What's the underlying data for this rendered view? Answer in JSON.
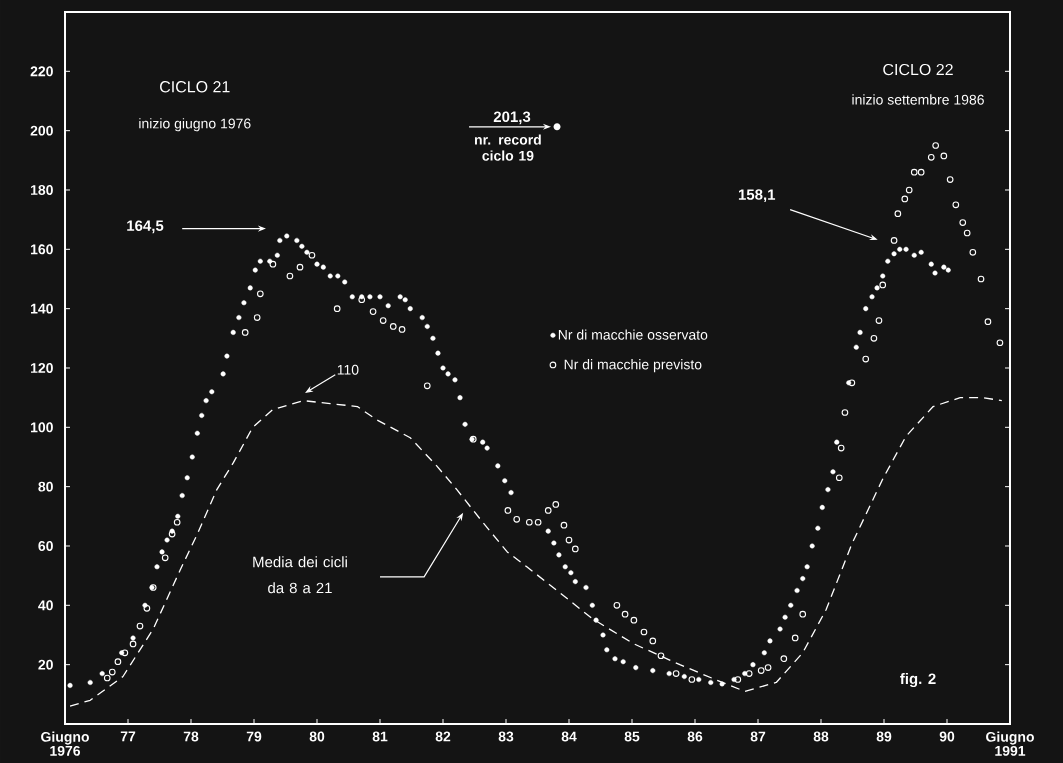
{
  "chart_data": {
    "type": "scatter",
    "xlim": [
      1976,
      1991
    ],
    "ylim": [
      0,
      240
    ],
    "xticks": [
      {
        "value": 1976,
        "label": "Giugno 1976"
      },
      {
        "value": 1977,
        "label": "77"
      },
      {
        "value": 1978,
        "label": "78"
      },
      {
        "value": 1979,
        "label": "79"
      },
      {
        "value": 1980,
        "label": "80"
      },
      {
        "value": 1981,
        "label": "81"
      },
      {
        "value": 1982,
        "label": "82"
      },
      {
        "value": 1983,
        "label": "83"
      },
      {
        "value": 1984,
        "label": "84"
      },
      {
        "value": 1985,
        "label": "85"
      },
      {
        "value": 1986,
        "label": "86"
      },
      {
        "value": 1987,
        "label": "87"
      },
      {
        "value": 1988,
        "label": "88"
      },
      {
        "value": 1989,
        "label": "89"
      },
      {
        "value": 1990,
        "label": "90"
      },
      {
        "value": 1991,
        "label": "Giugno 1991"
      }
    ],
    "yticks": [
      20,
      40,
      60,
      80,
      100,
      120,
      140,
      160,
      180,
      200,
      220
    ],
    "legend": "center",
    "annotations": [
      "CICLO 21",
      "inizio giugno 1976",
      "CICLO 22",
      "inizio settembre 1986",
      {
        "text": "201,3",
        "x": 1983.81,
        "y": 201.3
      },
      "nr. record ciclo 19",
      "164,5",
      "158,1",
      "110",
      "Media dei cicli da 8 a 21",
      "fig. 2"
    ],
    "series": [
      {
        "name": "Nr di macchie osservato",
        "marker": "circle",
        "color": "#ffffff",
        "x": [
          1976.08,
          1976.4,
          1976.59,
          1976.9,
          1977.08,
          1977.27,
          1977.38,
          1977.46,
          1977.54,
          1977.62,
          1977.7,
          1977.79,
          1977.86,
          1977.94,
          1978.02,
          1978.1,
          1978.17,
          1978.24,
          1978.33,
          1978.51,
          1978.57,
          1978.67,
          1978.76,
          1978.84,
          1978.94,
          1979.02,
          1979.1,
          1979.25,
          1979.37,
          1979.41,
          1979.52,
          1979.68,
          1979.76,
          1979.84,
          1980.0,
          1980.1,
          1980.21,
          1980.33,
          1980.44,
          1980.56,
          1980.71,
          1980.84,
          1981.0,
          1981.13,
          1981.32,
          1981.4,
          1981.48,
          1981.67,
          1981.75,
          1981.84,
          1981.92,
          1982.0,
          1982.08,
          1982.19,
          1982.27,
          1982.35,
          1982.46,
          1982.63,
          1982.7,
          1982.87,
          1982.98,
          1983.08,
          1983.67,
          1983.76,
          1983.84,
          1983.94,
          1984.03,
          1984.1,
          1984.27,
          1984.37,
          1984.43,
          1984.54,
          1984.6,
          1984.73,
          1984.86,
          1985.06,
          1985.33,
          1985.59,
          1985.83,
          1986.06,
          1986.25,
          1986.43,
          1986.62,
          1986.79,
          1986.92,
          1987.1,
          1987.19,
          1987.35,
          1987.43,
          1987.52,
          1987.62,
          1987.71,
          1987.78,
          1987.86,
          1987.95,
          1988.02,
          1988.11,
          1988.19,
          1988.25,
          1988.44,
          1988.56,
          1988.62,
          1988.71,
          1988.81,
          1988.89,
          1988.98,
          1989.06,
          1989.16,
          1989.25,
          1989.35,
          1989.48,
          1989.59,
          1989.75,
          1989.81,
          1989.95,
          1990.02
        ],
        "values": [
          13,
          14,
          17,
          24,
          29,
          40,
          46,
          53,
          58,
          62,
          65,
          70,
          77,
          83,
          90,
          98,
          104,
          109,
          112,
          118,
          124,
          132,
          137,
          142,
          147,
          153,
          156,
          156,
          158,
          163,
          164.5,
          163,
          161,
          159,
          155,
          154,
          151,
          151,
          149,
          144,
          144,
          144,
          144,
          141,
          144,
          143,
          140,
          137,
          134,
          130,
          125,
          120,
          118,
          116,
          110,
          101,
          96,
          95,
          93,
          87,
          82,
          78,
          65,
          61,
          57,
          53,
          51,
          48,
          46,
          40,
          35,
          30,
          25,
          22,
          21,
          19,
          18,
          17,
          16,
          15,
          14,
          13.5,
          15,
          17,
          20,
          24,
          28,
          32,
          36,
          40,
          45,
          49,
          53,
          60,
          66,
          73,
          79,
          85,
          95,
          115,
          127,
          132,
          140,
          144,
          147,
          151,
          156,
          158.5,
          160,
          160,
          158,
          159,
          155,
          152,
          154,
          153
        ]
      },
      {
        "name": "Nr di macchie previsto",
        "marker": "circle_open",
        "color": "#ffffff",
        "x": [
          1976.67,
          1976.75,
          1976.84,
          1976.95,
          1977.08,
          1977.19,
          1977.3,
          1977.4,
          1977.59,
          1977.7,
          1977.78,
          1978.86,
          1979.05,
          1979.1,
          1979.3,
          1979.57,
          1979.73,
          1979.92,
          1980.32,
          1980.71,
          1980.89,
          1981.05,
          1981.21,
          1981.35,
          1981.75,
          1982.48,
          1983.03,
          1983.17,
          1983.37,
          1983.51,
          1983.67,
          1983.79,
          1983.92,
          1984.0,
          1984.1,
          1984.76,
          1984.89,
          1985.03,
          1985.19,
          1985.33,
          1985.46,
          1985.7,
          1985.95,
          1986.68,
          1986.86,
          1987.05,
          1987.16,
          1987.41,
          1987.59,
          1987.71,
          1988.29,
          1988.32,
          1988.38,
          1988.49,
          1988.71,
          1988.84,
          1988.92,
          1988.98,
          1989.16,
          1989.22,
          1989.33,
          1989.4,
          1989.48,
          1989.59,
          1989.75,
          1989.82,
          1989.95,
          1990.05,
          1990.14,
          1990.25,
          1990.32,
          1990.41,
          1990.54,
          1990.65,
          1990.84
        ],
        "values": [
          15.5,
          17.5,
          21,
          24,
          27,
          33,
          39,
          46,
          56,
          64,
          68,
          132,
          137,
          145,
          155,
          151,
          154,
          158,
          140,
          143,
          139,
          136,
          134,
          133,
          114,
          96,
          72,
          69,
          68,
          68,
          72,
          74,
          67,
          62,
          59,
          40,
          37,
          35,
          31,
          28,
          23,
          17,
          15,
          15,
          17,
          18,
          19,
          22,
          29,
          37,
          83,
          93,
          105,
          115,
          123,
          130,
          136,
          148,
          163,
          172,
          177,
          180,
          186,
          186,
          191,
          195,
          191.5,
          183.5,
          175,
          169,
          165.5,
          159,
          150,
          135.6,
          128.5
        ]
      },
      {
        "type": "line",
        "marker": "none",
        "line_style": "dashed",
        "color": "#ffffff",
        "x": [
          1976.08,
          1976.4,
          1976.92,
          1977.4,
          1977.83,
          1978.1,
          1978.41,
          1978.67,
          1978.98,
          1979.3,
          1979.78,
          1980.21,
          1980.64,
          1980.95,
          1981.48,
          1981.9,
          1982.22,
          1982.63,
          1983.02,
          1983.33,
          1983.84,
          1984.37,
          1985.03,
          1985.76,
          1986.32,
          1986.79,
          1987.29,
          1987.71,
          1988.08,
          1988.49,
          1988.98,
          1989.35,
          1989.78,
          1990.21,
          1990.57,
          1990.87
        ],
        "values": [
          6,
          8,
          16,
          32,
          52,
          64,
          79,
          88,
          100,
          106,
          109,
          108,
          107,
          102.5,
          96.5,
          87,
          79,
          68,
          58,
          53,
          44.5,
          35.5,
          27,
          20,
          15,
          11,
          14,
          24,
          38.5,
          60.7,
          82.6,
          97,
          107,
          110,
          110,
          109
        ]
      }
    ]
  }
}
